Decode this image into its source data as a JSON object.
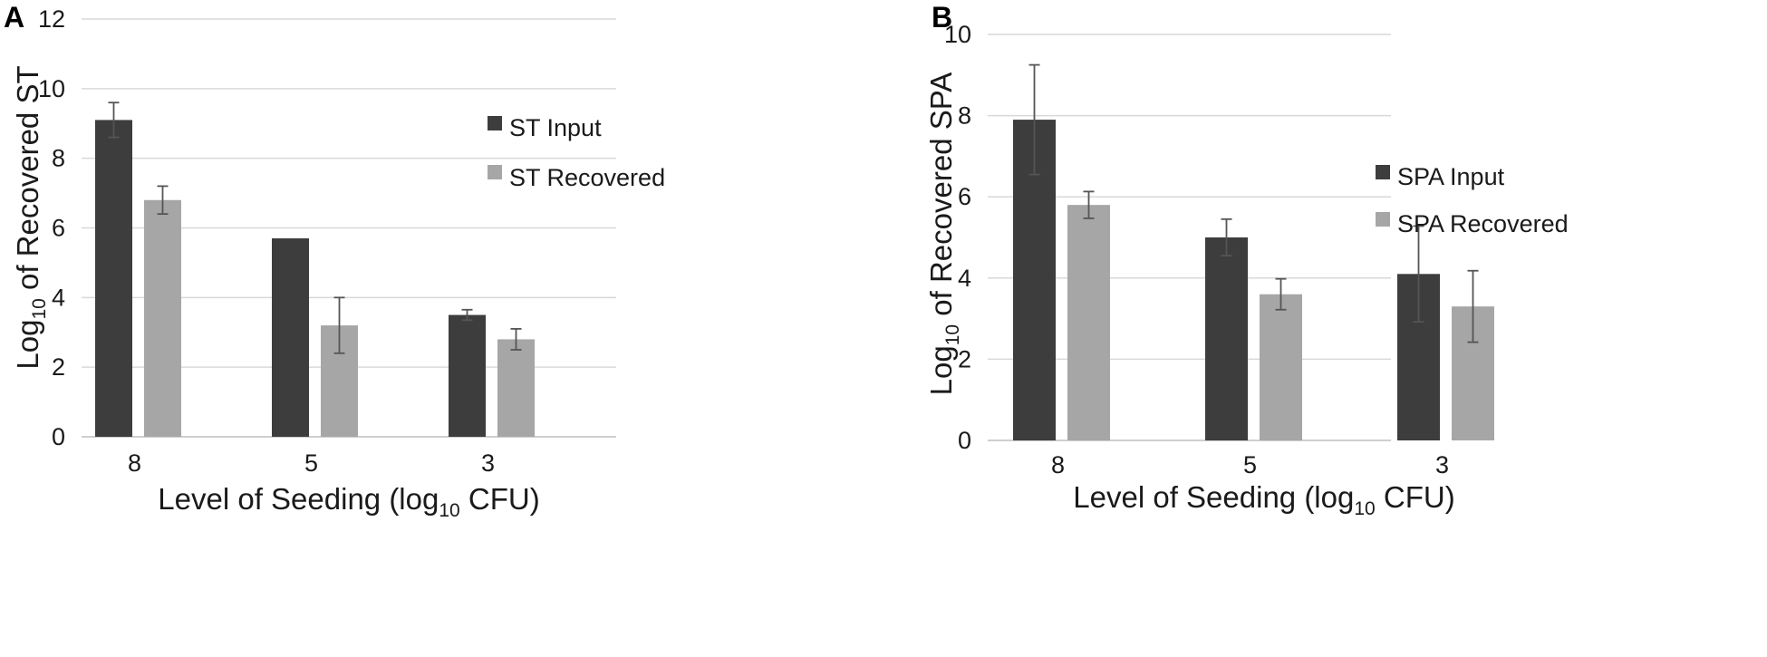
{
  "colors": {
    "input": "#3d3d3d",
    "recovered": "#a6a6a6",
    "grid": "#d9d9d9",
    "error": "#555555"
  },
  "chart_data": [
    {
      "panel_label": "A",
      "type": "bar",
      "title": "",
      "categories": [
        "8",
        "5",
        "3"
      ],
      "series": [
        {
          "name": "ST Input",
          "values": [
            9.1,
            5.7,
            3.5
          ],
          "errors": [
            0.5,
            0.0,
            0.15
          ]
        },
        {
          "name": "ST Recovered",
          "values": [
            6.8,
            3.2,
            2.8
          ],
          "errors": [
            0.4,
            0.8,
            0.3
          ]
        }
      ],
      "xlabel": {
        "main": "Level of Seeding (log",
        "sub": "10",
        "tail": " CFU)"
      },
      "ylabel": {
        "main": "Log",
        "sub": "10",
        "tail": " of Recovered ST"
      },
      "ylim": [
        0,
        12
      ],
      "yticks": [
        0,
        2,
        4,
        6,
        8,
        10,
        12
      ],
      "grid": true,
      "legend_position": "right"
    },
    {
      "panel_label": "B",
      "type": "bar",
      "title": "",
      "categories": [
        "8",
        "5",
        "3"
      ],
      "series": [
        {
          "name": "SPA Input",
          "values": [
            7.9,
            5.0,
            4.1
          ],
          "errors": [
            1.35,
            0.45,
            1.18
          ]
        },
        {
          "name": "SPA Recovered",
          "values": [
            5.8,
            3.6,
            3.3
          ],
          "errors": [
            0.33,
            0.38,
            0.88
          ]
        }
      ],
      "xlabel": {
        "main": "Level of Seeding (log",
        "sub": "10",
        "tail": " CFU)"
      },
      "ylabel": {
        "main": "Log",
        "sub": "10",
        "tail": " of Recovered SPA"
      },
      "ylim": [
        0,
        10
      ],
      "yticks": [
        0,
        2,
        4,
        6,
        8,
        10
      ],
      "grid": true,
      "legend_position": "right"
    }
  ]
}
